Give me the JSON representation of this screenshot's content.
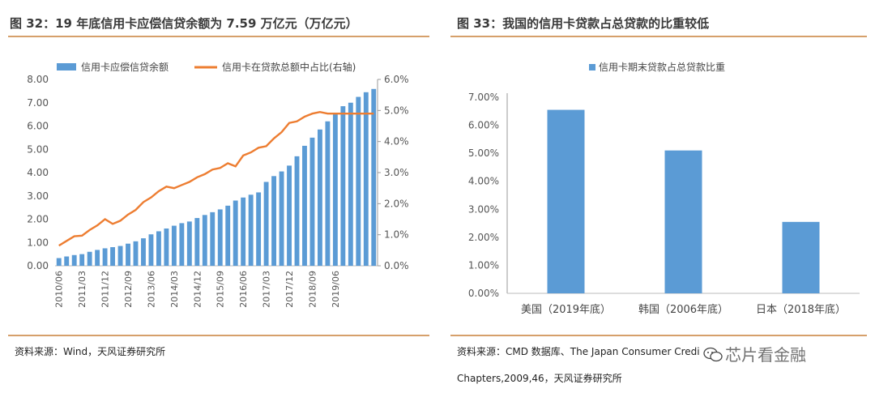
{
  "left": {
    "title": "图 32：19 年底信用卡应偿信贷余额为 7.59 万亿元（万亿元）",
    "source": "资料来源：Wind，天风证券研究所"
  },
  "right": {
    "title": "图 33：我国的信用卡贷款占总贷款的比重较低",
    "source_line1": "资料来源：CMD 数据库、The Japan Consumer Credit Association Chapters",
    "source_line2": "Chapters,2009,46，天风证券研究所"
  },
  "watermark": "芯片看金融",
  "colors": {
    "bar": "#5b9bd5",
    "line": "#ed7d31",
    "rule": "#d6a06b"
  },
  "chart_data": [
    {
      "type": "bar",
      "series": [
        {
          "name": "信用卡应偿信贷余额",
          "axis": "left",
          "values": [
            0.33,
            0.4,
            0.46,
            0.5,
            0.6,
            0.68,
            0.75,
            0.8,
            0.85,
            0.95,
            1.05,
            1.18,
            1.35,
            1.48,
            1.6,
            1.72,
            1.83,
            1.9,
            2.05,
            2.18,
            2.3,
            2.42,
            2.58,
            2.8,
            2.93,
            3.05,
            3.15,
            3.6,
            3.85,
            4.05,
            4.3,
            4.7,
            5.15,
            5.5,
            5.85,
            6.2,
            6.55,
            6.85,
            7.0,
            7.25,
            7.45,
            7.59
          ]
        },
        {
          "name": "信用卡在贷款总额中占比(右轴)",
          "axis": "right",
          "type": "line",
          "values": [
            0.65,
            0.8,
            0.95,
            0.97,
            1.15,
            1.3,
            1.5,
            1.35,
            1.45,
            1.65,
            1.8,
            2.05,
            2.2,
            2.4,
            2.55,
            2.5,
            2.6,
            2.7,
            2.85,
            2.95,
            3.1,
            3.15,
            3.3,
            3.2,
            3.55,
            3.65,
            3.8,
            3.85,
            4.1,
            4.3,
            4.6,
            4.65,
            4.8,
            4.9,
            4.95,
            4.9,
            4.9,
            4.9,
            4.9,
            4.9,
            4.9,
            4.9
          ]
        }
      ],
      "x_tick_labels": [
        "2010/06",
        "2011/03",
        "2011/12",
        "2012/09",
        "2013/06",
        "2014/03",
        "2014/12",
        "2015/09",
        "2016/06",
        "2017/03",
        "2017/12",
        "2018/09",
        "2019/06"
      ],
      "y_tick_labels": [
        "0.00",
        "1.00",
        "2.00",
        "3.00",
        "4.00",
        "5.00",
        "6.00",
        "7.00",
        "8.00"
      ],
      "y2_tick_labels": [
        "0.0%",
        "1.0%",
        "2.0%",
        "3.0%",
        "4.0%",
        "5.0%",
        "6.0%"
      ],
      "ylim": [
        0,
        8
      ],
      "y2lim": [
        0,
        6
      ],
      "legend_position": "top"
    },
    {
      "type": "bar",
      "categories": [
        "美国（2019年底）",
        "韩国（2006年底）",
        "日本（2018年底）"
      ],
      "series": [
        {
          "name": "信用卡期末贷款占总贷款比重",
          "values": [
            6.55,
            5.1,
            2.55
          ]
        }
      ],
      "y_tick_labels": [
        "0.00%",
        "1.00%",
        "2.00%",
        "3.00%",
        "4.00%",
        "5.00%",
        "6.00%",
        "7.00%"
      ],
      "ylim": [
        0,
        7
      ],
      "legend_position": "top"
    }
  ]
}
